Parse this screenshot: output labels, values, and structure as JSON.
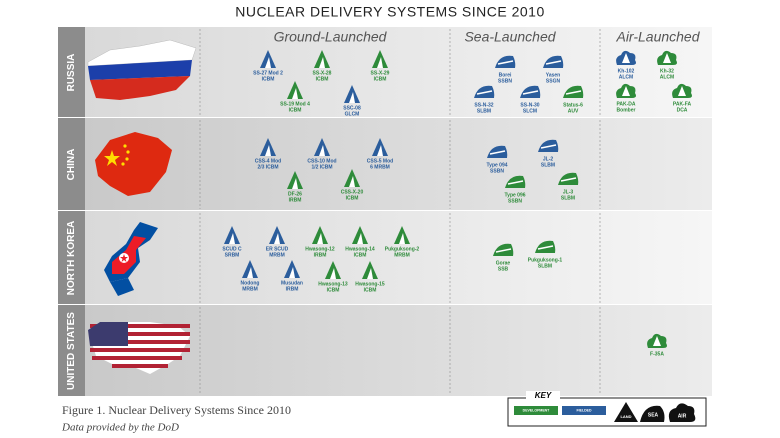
{
  "title": "NUCLEAR DELIVERY SYSTEMS SINCE 2010",
  "columns": {
    "ground": "Ground-Launched",
    "sea": "Sea-Launched",
    "air": "Air-Launched"
  },
  "rows": [
    {
      "country": "RUSSIA",
      "ground": [
        {
          "name": "SS-27 Mod 2",
          "class": "ICBM",
          "color": "#2b5d9c"
        },
        {
          "name": "SS-X-28",
          "class": "ICBM",
          "color": "#2e8b3a"
        },
        {
          "name": "SS-X-29",
          "class": "ICBM",
          "color": "#2e8b3a"
        },
        {
          "name": "SS-19 Mod 4",
          "class": "ICBM",
          "color": "#2e8b3a"
        },
        {
          "name": "SSC-08",
          "class": "GLCM",
          "color": "#2b5d9c"
        }
      ],
      "sea": [
        {
          "name": "Borei",
          "class": "SSBN",
          "color": "#2b5d9c"
        },
        {
          "name": "Yasen",
          "class": "SSGN",
          "color": "#2b5d9c"
        },
        {
          "name": "SS-N-32",
          "class": "SLBM",
          "color": "#2b5d9c"
        },
        {
          "name": "SS-N-30",
          "class": "SLCM",
          "color": "#2b5d9c"
        },
        {
          "name": "Status-6",
          "class": "AUV",
          "color": "#2e8b3a"
        }
      ],
      "air": [
        {
          "name": "Kh-102",
          "class": "ALCM",
          "color": "#2b5d9c"
        },
        {
          "name": "Kh-32",
          "class": "ALCM",
          "color": "#2e8b3a"
        },
        {
          "name": "PAK-DA",
          "class": "Bomber",
          "color": "#2e8b3a"
        },
        {
          "name": "PAK-FA",
          "class": "DCA",
          "color": "#2e8b3a"
        }
      ]
    },
    {
      "country": "CHINA",
      "ground": [
        {
          "name": "CSS-4 Mod",
          "class": "2/3 ICBM",
          "color": "#2b5d9c"
        },
        {
          "name": "CSS-10 Mod",
          "class": "1/2 ICBM",
          "color": "#2b5d9c"
        },
        {
          "name": "CSS-5 Mod",
          "class": "6 MRBM",
          "color": "#2b5d9c"
        },
        {
          "name": "DF-26",
          "class": "IRBM",
          "color": "#2e8b3a"
        },
        {
          "name": "CSS-X-20",
          "class": "ICBM",
          "color": "#2e8b3a"
        }
      ],
      "sea": [
        {
          "name": "Type 094",
          "class": "SSBN",
          "color": "#2b5d9c"
        },
        {
          "name": "JL-2",
          "class": "SLBM",
          "color": "#2b5d9c"
        },
        {
          "name": "Type 096",
          "class": "SSBN",
          "color": "#2e8b3a"
        },
        {
          "name": "JL-3",
          "class": "SLBM",
          "color": "#2e8b3a"
        }
      ],
      "air": []
    },
    {
      "country": "NORTH KOREA",
      "ground": [
        {
          "name": "SCUD C",
          "class": "SRBM",
          "color": "#2b5d9c"
        },
        {
          "name": "ER SCUD",
          "class": "MRBM",
          "color": "#2b5d9c"
        },
        {
          "name": "Hwasong-12",
          "class": "IRBM",
          "color": "#2e8b3a"
        },
        {
          "name": "Hwasong-14",
          "class": "ICBM",
          "color": "#2e8b3a"
        },
        {
          "name": "Pukguksong-2",
          "class": "MRBM",
          "color": "#2e8b3a"
        },
        {
          "name": "Nodong",
          "class": "MRBM",
          "color": "#2b5d9c"
        },
        {
          "name": "Musudan",
          "class": "IRBM",
          "color": "#2b5d9c"
        },
        {
          "name": "Hwasong-13",
          "class": "ICBM",
          "color": "#2e8b3a"
        },
        {
          "name": "Hwasong-15",
          "class": "ICBM",
          "color": "#2e8b3a"
        }
      ],
      "sea": [
        {
          "name": "Gorae",
          "class": "SSB",
          "color": "#2e8b3a"
        },
        {
          "name": "Pukguksong-1",
          "class": "SLBM",
          "color": "#2e8b3a"
        }
      ],
      "air": []
    },
    {
      "country": "UNITED STATES",
      "ground": [],
      "sea": [],
      "air": [
        {
          "name": "F-35A",
          "color": "#2e8b3a"
        }
      ]
    }
  ],
  "caption": "Figure 1. Nuclear Delivery Systems Since 2010",
  "source": "Data provided by the DoD",
  "key": {
    "title": "KEY",
    "development": {
      "label": "DEVELOPMENT",
      "color": "#2e8b3a"
    },
    "fielded": {
      "label": "FIELDED",
      "color": "#2b5d9c"
    },
    "land": "LAND",
    "sea": "SEA",
    "air": "AIR"
  }
}
